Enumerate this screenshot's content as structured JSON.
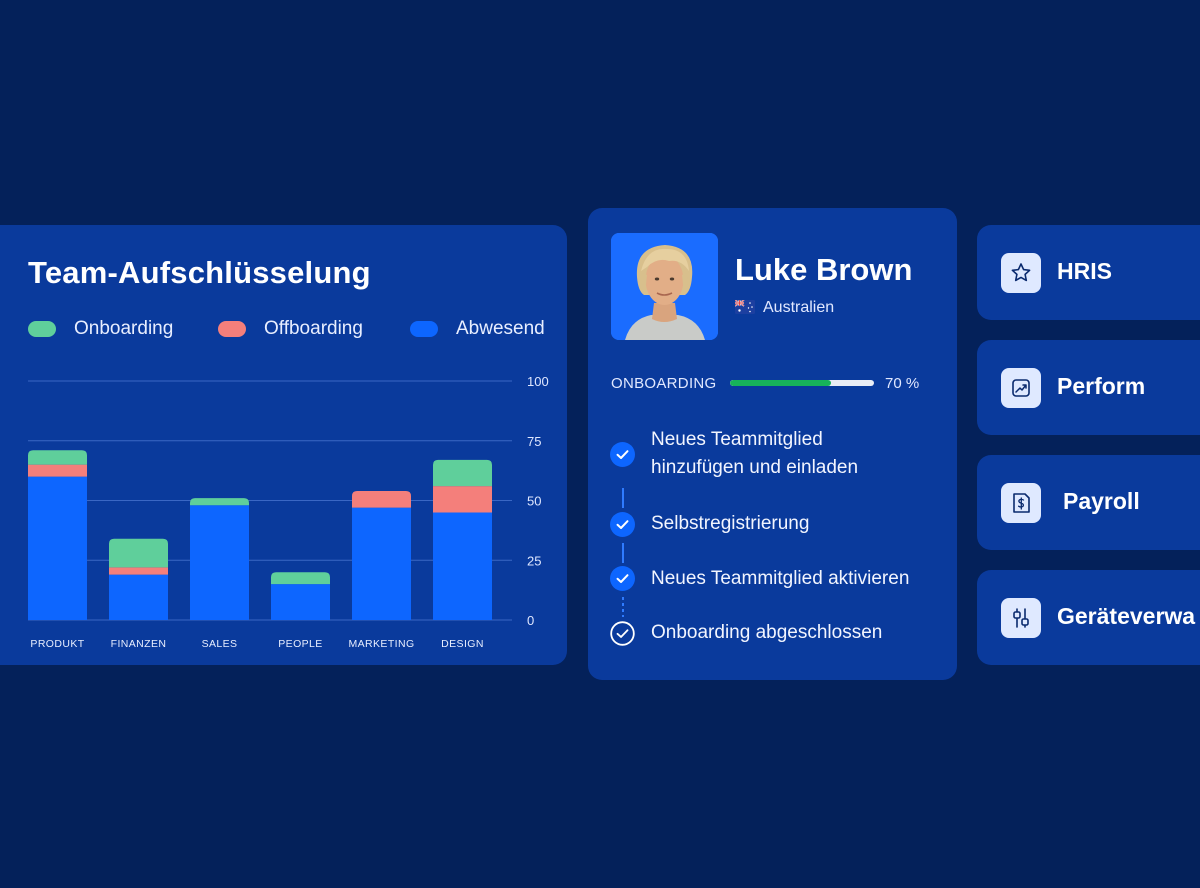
{
  "colors": {
    "background": "#04215a",
    "card": "#0a3a9c",
    "onboarding": "#5fcf9b",
    "offboarding": "#f47f7b",
    "absent": "#0d66ff",
    "progress_fill": "#17b25a"
  },
  "chart_card": {
    "title": "Team-Aufschlüsselung",
    "legend": [
      {
        "label": "Onboarding",
        "color": "#5fcf9b"
      },
      {
        "label": "Offboarding",
        "color": "#f47f7b"
      },
      {
        "label": "Abwesend",
        "color": "#0d66ff"
      }
    ]
  },
  "chart_data": {
    "type": "bar",
    "stacked": true,
    "title": "Team-Aufschlüsselung",
    "categories": [
      "PRODUKT",
      "FINANZEN",
      "SALES",
      "PEOPLE",
      "MARKETING",
      "DESIGN"
    ],
    "series": [
      {
        "name": "Abwesend",
        "color": "#0d66ff",
        "values": [
          60,
          19,
          48,
          15,
          47,
          45
        ]
      },
      {
        "name": "Offboarding",
        "color": "#f47f7b",
        "values": [
          5,
          3,
          0,
          0,
          7,
          11
        ]
      },
      {
        "name": "Onboarding",
        "color": "#5fcf9b",
        "values": [
          6,
          12,
          3,
          5,
          0,
          11
        ]
      }
    ],
    "yticks": [
      "100",
      "75",
      "50",
      "25",
      "0"
    ],
    "ylim": [
      0,
      100
    ],
    "grid": true,
    "legend_position": "top-left"
  },
  "profile": {
    "name": "Luke Brown",
    "country": "Australien",
    "progress_label": "ONBOARDING",
    "progress_value": 0.7,
    "progress_text": "70 %",
    "steps": [
      {
        "line1": "Neues Teammitglied",
        "line2": "hinzufügen und einladen",
        "done": true
      },
      {
        "line1": "Selbstregistrierung",
        "done": true
      },
      {
        "line1": "Neues Teammitglied aktivieren",
        "done": true
      },
      {
        "line1": "Onboarding abgeschlossen",
        "done": false
      }
    ]
  },
  "modules": [
    {
      "label": "HRIS",
      "icon": "star-icon"
    },
    {
      "label": "Perform",
      "icon": "trend-chart-icon"
    },
    {
      "label": "Payroll",
      "icon": "dollar-document-icon"
    },
    {
      "label": "Geräteverwa",
      "icon": "sliders-icon"
    }
  ]
}
